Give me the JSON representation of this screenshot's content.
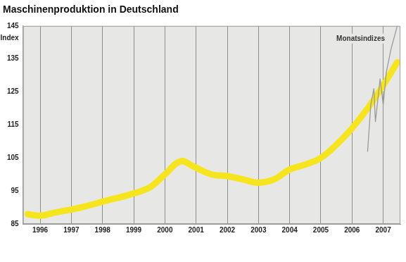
{
  "chart_data": {
    "type": "line",
    "title": "Maschinenproduktion in Deutschland",
    "y_label": "Index",
    "series": [
      {
        "color": "#f6e51c",
        "line_style": "solid",
        "x": [
          1996.1,
          1996.5,
          1997.0,
          1997.8,
          1998.6,
          1999.4,
          2000.0,
          2000.5,
          2001.0,
          2001.4,
          2002.0,
          2002.5,
          2003.0,
          2003.5,
          2004.0,
          2004.5,
          2005.0,
          2005.5,
          2006.0,
          2006.5,
          2007.0,
          2007.5,
          2007.95
        ],
        "values": [
          88,
          87.5,
          88.5,
          90,
          92,
          94,
          96,
          100,
          104,
          102.5,
          100,
          99.5,
          98.5,
          97.5,
          98.5,
          101.5,
          103,
          105,
          109,
          114,
          120,
          127,
          134
        ]
      },
      {
        "name": "Monatsindizes",
        "color": "#9a9a9a",
        "line_style": "solid",
        "x": [
          2007.0,
          2007.1,
          2007.2,
          2007.25,
          2007.4,
          2007.5,
          2007.6,
          2007.75,
          2007.95
        ],
        "values": [
          107,
          121,
          126,
          116,
          129,
          121,
          131,
          138,
          145
        ]
      }
    ],
    "xlim": [
      1995.95,
      2008.05
    ],
    "xticks": [
      {
        "value": 1996.5,
        "label": "1996"
      },
      {
        "value": 1997.5,
        "label": "1997"
      },
      {
        "value": 1998.5,
        "label": "1998"
      },
      {
        "value": 1999.5,
        "label": "1999"
      },
      {
        "value": 2000.5,
        "label": "2000"
      },
      {
        "value": 2001.5,
        "label": "2001"
      },
      {
        "value": 2002.5,
        "label": "2002"
      },
      {
        "value": 2003.5,
        "label": "2003"
      },
      {
        "value": 2004.5,
        "label": "2004"
      },
      {
        "value": 2005.5,
        "label": "2005"
      },
      {
        "value": 2006.5,
        "label": "2006"
      },
      {
        "value": 2007.5,
        "label": "2007"
      }
    ],
    "ylim": [
      85,
      145
    ],
    "yticks": [
      85,
      95,
      105,
      115,
      125,
      135,
      145
    ],
    "grid": true
  }
}
